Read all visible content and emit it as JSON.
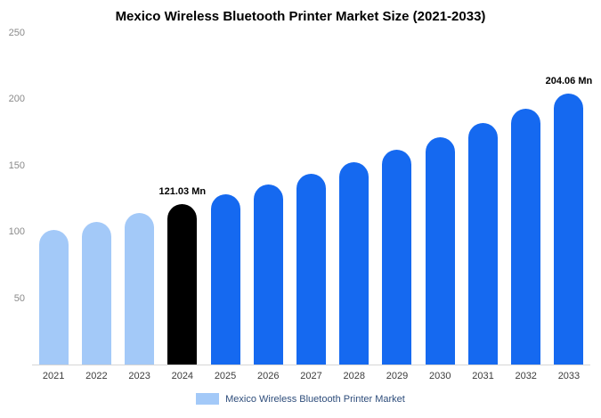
{
  "chart_data": {
    "type": "bar",
    "title": "Mexico Wireless Bluetooth Printer Market Size (2021-2033)",
    "categories": [
      "2021",
      "2022",
      "2023",
      "2024",
      "2025",
      "2026",
      "2027",
      "2028",
      "2029",
      "2030",
      "2031",
      "2032",
      "2033"
    ],
    "values": [
      101.6,
      107.7,
      114.2,
      121.03,
      128.3,
      136.0,
      144.1,
      152.8,
      161.9,
      171.6,
      181.9,
      192.8,
      204.06
    ],
    "unit": "Mn",
    "ylim": [
      0,
      250
    ],
    "yticks": [
      250,
      200,
      150,
      100,
      50
    ],
    "grid": false,
    "legend": "Mexico Wireless Bluetooth Printer Market",
    "legend_position": "bottom",
    "annotations": [
      {
        "index": 3,
        "text": "121.03 Mn"
      },
      {
        "index": 12,
        "text": "204.06 Mn"
      }
    ],
    "bar_colors": [
      "#a3c9f8",
      "#a3c9f8",
      "#a3c9f8",
      "#000000",
      "#1569f0",
      "#1569f0",
      "#1569f0",
      "#1569f0",
      "#1569f0",
      "#1569f0",
      "#1569f0",
      "#1569f0",
      "#1569f0"
    ],
    "colors": {
      "historical": "#a3c9f8",
      "base_year": "#000000",
      "forecast": "#1569f0",
      "legend_swatch": "#a3c9f8",
      "axis_line": "#d6d6d6"
    }
  }
}
